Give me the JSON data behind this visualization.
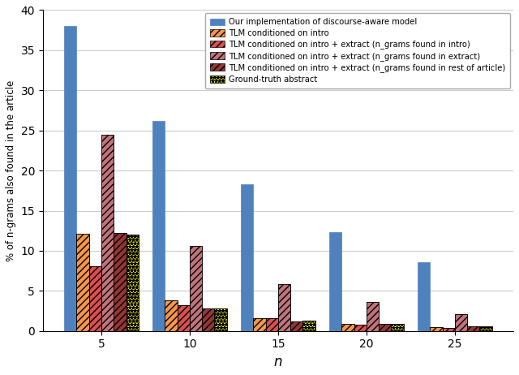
{
  "categories": [
    5,
    10,
    15,
    20,
    25
  ],
  "series": {
    "discourse": [
      38.0,
      26.2,
      18.3,
      12.3,
      8.6
    ],
    "tlm_intro": [
      12.1,
      3.8,
      1.6,
      0.9,
      0.45
    ],
    "tlm_intro_extract_intro": [
      8.1,
      3.2,
      1.6,
      0.8,
      0.4
    ],
    "tlm_intro_extract_extract": [
      24.5,
      10.6,
      5.8,
      3.6,
      2.1
    ],
    "tlm_intro_extract_rest": [
      12.2,
      2.8,
      1.2,
      0.85,
      0.55
    ],
    "ground_truth": [
      12.0,
      2.8,
      1.3,
      0.9,
      0.55
    ]
  },
  "face_colors": {
    "discourse": "#4f81bd",
    "tlm_intro": "#f79646",
    "tlm_intro_extract_intro": "#da4f4f",
    "tlm_intro_extract_extract": "#c0737a",
    "tlm_intro_extract_rest": "#943634",
    "ground_truth": "#ffff00"
  },
  "hatch_colors": {
    "discourse": "none",
    "tlm_intro": "#000000",
    "tlm_intro_extract_intro": "#000000",
    "tlm_intro_extract_extract": "#000000",
    "tlm_intro_extract_rest": "#000000",
    "ground_truth": "#000000"
  },
  "hatches": {
    "discourse": "",
    "tlm_intro": "////",
    "tlm_intro_extract_intro": "////",
    "tlm_intro_extract_extract": "////",
    "tlm_intro_extract_rest": "////",
    "ground_truth": "****"
  },
  "labels": {
    "discourse": "Our implementation of discourse-aware model",
    "tlm_intro": "TLM conditioned on intro",
    "tlm_intro_extract_intro": "TLM conditioned on intro + extract (n_grams found in intro)",
    "tlm_intro_extract_extract": "TLM conditioned on intro + extract (n_grams found in extract)",
    "tlm_intro_extract_rest": "TLM conditioned on intro + extract (n_grams found in rest of article)",
    "ground_truth": "Ground-truth abstract"
  },
  "ylabel": "% of n-grams also found in the article",
  "xlabel": "n",
  "ylim": [
    0,
    40
  ],
  "yticks": [
    0,
    5,
    10,
    15,
    20,
    25,
    30,
    35,
    40
  ],
  "bar_width": 0.14,
  "figsize": [
    6.4,
    4.62
  ],
  "dpi": 100
}
